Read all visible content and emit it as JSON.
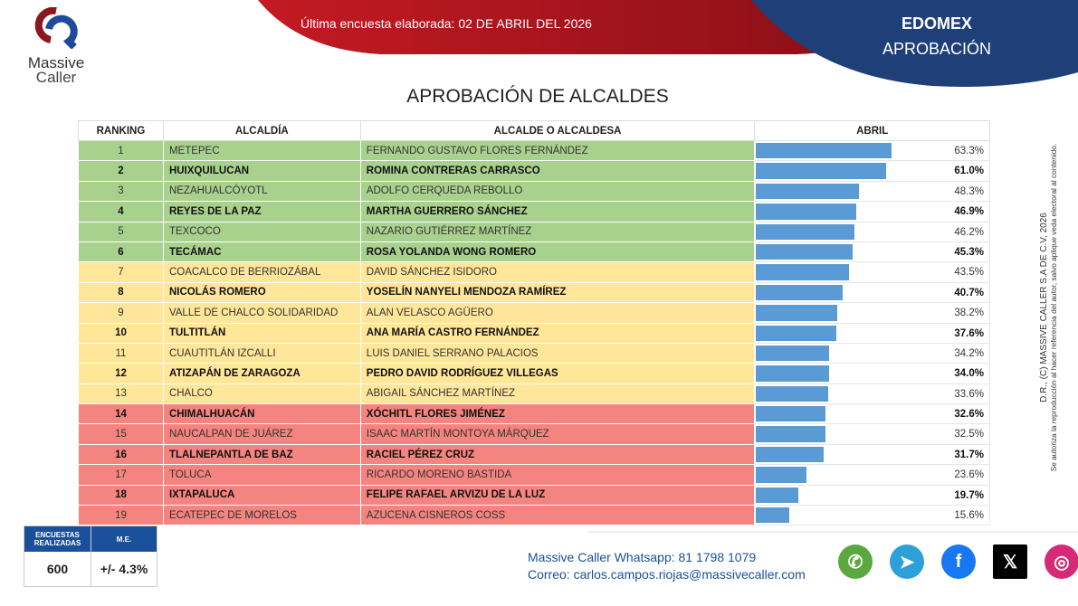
{
  "header": {
    "logo_line1": "Massive",
    "logo_line2": "Caller",
    "survey_date": "Última encuesta elaborada: 02 DE ABRIL DEL 2026",
    "region": "EDOMEX",
    "subject": "APROBACIÓN"
  },
  "title": "APROBACIÓN DE ALCALDES",
  "table": {
    "columns": [
      "RANKING",
      "ALCALDÍA",
      "ALCALDE O ALCALDESA",
      "ABRIL"
    ],
    "rows": [
      {
        "rank": "1",
        "municipio": "METEPEC",
        "name": "FERNANDO GUSTAVO FLORES FERNÁNDEZ",
        "value": 63.3,
        "label": "63.3%",
        "group": "g"
      },
      {
        "rank": "2",
        "municipio": "HUIXQUILUCAN",
        "name": "ROMINA CONTRERAS CARRASCO",
        "value": 61.0,
        "label": "61.0%",
        "group": "g"
      },
      {
        "rank": "3",
        "municipio": "NEZAHUALCÓYOTL",
        "name": "ADOLFO CERQUEDA REBOLLO",
        "value": 48.3,
        "label": "48.3%",
        "group": "g"
      },
      {
        "rank": "4",
        "municipio": "REYES DE LA PAZ",
        "name": "MARTHA GUERRERO SÁNCHEZ",
        "value": 46.9,
        "label": "46.9%",
        "group": "g"
      },
      {
        "rank": "5",
        "municipio": "TEXCOCO",
        "name": "NAZARIO GUTIÉRREZ MARTÍNEZ",
        "value": 46.2,
        "label": "46.2%",
        "group": "g"
      },
      {
        "rank": "6",
        "municipio": "TECÁMAC",
        "name": "ROSA YOLANDA WONG ROMERO",
        "value": 45.3,
        "label": "45.3%",
        "group": "g"
      },
      {
        "rank": "7",
        "municipio": "COACALCO DE BERRIOZÁBAL",
        "name": "DAVID SÁNCHEZ ISIDORO",
        "value": 43.5,
        "label": "43.5%",
        "group": "y"
      },
      {
        "rank": "8",
        "municipio": "NICOLÁS ROMERO",
        "name": "YOSELÍN NANYELI MENDOZA RAMÍREZ",
        "value": 40.7,
        "label": "40.7%",
        "group": "y"
      },
      {
        "rank": "9",
        "municipio": "VALLE DE CHALCO SOLIDARIDAD",
        "name": "ALAN VELASCO AGÜERO",
        "value": 38.2,
        "label": "38.2%",
        "group": "y"
      },
      {
        "rank": "10",
        "municipio": "TULTITLÁN",
        "name": "ANA MARÍA CASTRO FERNÁNDEZ",
        "value": 37.6,
        "label": "37.6%",
        "group": "y"
      },
      {
        "rank": "11",
        "municipio": "CUAUTITLÁN IZCALLI",
        "name": "LUIS DANIEL SERRANO PALACIOS",
        "value": 34.2,
        "label": "34.2%",
        "group": "y"
      },
      {
        "rank": "12",
        "municipio": "ATIZAPÁN DE ZARAGOZA",
        "name": "PEDRO DAVID RODRÍGUEZ VILLEGAS",
        "value": 34.0,
        "label": "34.0%",
        "group": "y"
      },
      {
        "rank": "13",
        "municipio": "CHALCO",
        "name": "ABIGAIL SÁNCHEZ MARTÍNEZ",
        "value": 33.6,
        "label": "33.6%",
        "group": "y"
      },
      {
        "rank": "14",
        "municipio": "CHIMALHUACÁN",
        "name": "XÓCHITL FLORES JIMÉNEZ",
        "value": 32.6,
        "label": "32.6%",
        "group": "r"
      },
      {
        "rank": "15",
        "municipio": "NAUCALPAN DE JUÁREZ",
        "name": "ISAAC MARTÍN MONTOYA MÁRQUEZ",
        "value": 32.5,
        "label": "32.5%",
        "group": "r"
      },
      {
        "rank": "16",
        "municipio": "TLALNEPANTLA DE BAZ",
        "name": "RACIEL PÉREZ CRUZ",
        "value": 31.7,
        "label": "31.7%",
        "group": "r"
      },
      {
        "rank": "17",
        "municipio": "TOLUCA",
        "name": "RICARDO MORENO BASTIDA",
        "value": 23.6,
        "label": "23.6%",
        "group": "r"
      },
      {
        "rank": "18",
        "municipio": "IXTAPALUCA",
        "name": "FELIPE RAFAEL ARVIZU DE LA LUZ",
        "value": 19.7,
        "label": "19.7%",
        "group": "r"
      },
      {
        "rank": "19",
        "municipio": "ECATEPEC DE MORELOS",
        "name": "AZUCENA CISNEROS COSS",
        "value": 15.6,
        "label": "15.6%",
        "group": "r"
      }
    ]
  },
  "colors": {
    "green": "#a9d18e",
    "yellow": "#ffe699",
    "red": "#f4847f",
    "bar": "#5b9bd5",
    "navy": "#1a4f9c",
    "header_red": "#b0131e"
  },
  "side_note": {
    "line1": "D.R., (C) MASSIVE CALLER S.A DE C.V, 2026",
    "line2": "Se autoriza la reproducción al hacer referencia del autor, salvo aplique veda electoral al contenido."
  },
  "stats": {
    "surveys_label": "ENCUESTAS REALIZADAS",
    "surveys_value": "600",
    "me_label": "M.E.",
    "me_value": "+/- 4.3%"
  },
  "contact": {
    "whatsapp": "Massive Caller Whatsapp: 81 1798 1079",
    "email": "Correo: carlos.campos.riojas@massivecaller.com"
  },
  "socials": [
    {
      "name": "whatsapp-icon",
      "color": "#5aa83f",
      "glyph": "✆"
    },
    {
      "name": "telegram-icon",
      "color": "#2d9fd9",
      "glyph": "➤"
    },
    {
      "name": "facebook-icon",
      "color": "#1877f2",
      "glyph": "f"
    },
    {
      "name": "x-icon",
      "color": "#000000",
      "glyph": "𝕏"
    },
    {
      "name": "instagram-icon",
      "color": "#d62976",
      "glyph": "◎"
    }
  ]
}
